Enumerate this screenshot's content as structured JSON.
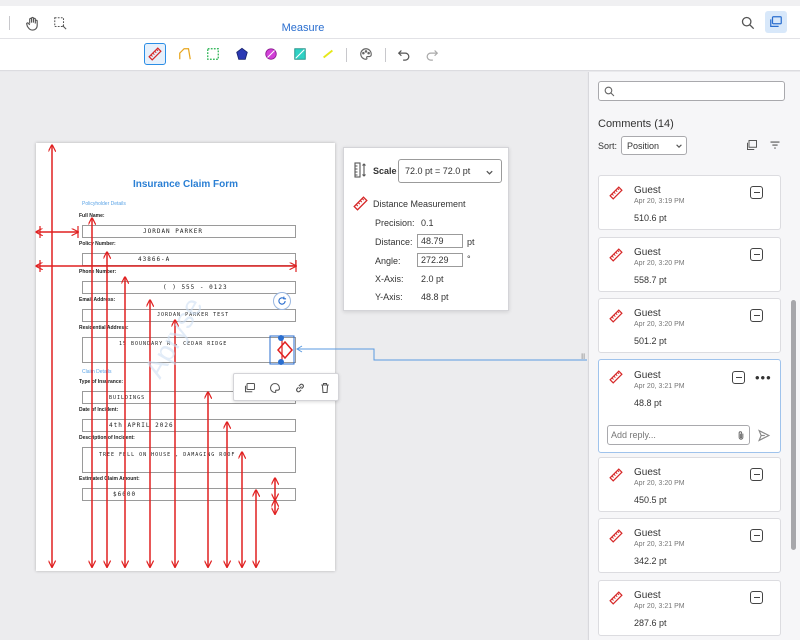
{
  "header": {
    "tab": "Measure"
  },
  "search": {
    "placeholder": ""
  },
  "comments": {
    "title": "Comments (14)",
    "sort_label": "Sort:",
    "sort_value": "Position",
    "items": [
      {
        "author": "Guest",
        "date": "Apr 20, 3:19 PM",
        "value": "510.6 pt"
      },
      {
        "author": "Guest",
        "date": "Apr 20, 3:20 PM",
        "value": "558.7 pt"
      },
      {
        "author": "Guest",
        "date": "Apr 20, 3:20 PM",
        "value": "501.2 pt"
      },
      {
        "author": "Guest",
        "date": "Apr 20, 3:21 PM",
        "value": "48.8 pt"
      },
      {
        "author": "Guest",
        "date": "Apr 20, 3:20 PM",
        "value": "450.5 pt"
      },
      {
        "author": "Guest",
        "date": "Apr 20, 3:21 PM",
        "value": "342.2 pt"
      },
      {
        "author": "Guest",
        "date": "Apr 20, 3:21 PM",
        "value": "287.6 pt"
      }
    ],
    "reply_placeholder": "Add reply..."
  },
  "popup": {
    "scale_label": "Scale",
    "scale_value": "72.0 pt = 72.0 pt",
    "title": "Distance Measurement",
    "precision_label": "Precision:",
    "precision_value": "0.1",
    "distance_label": "Distance:",
    "distance_value": "48.79",
    "distance_unit": "pt",
    "angle_label": "Angle:",
    "angle_value": "272.29",
    "angle_unit": "°",
    "xaxis_label": "X-Axis:",
    "xaxis_value": "2.0 pt",
    "yaxis_label": "Y-Axis:",
    "yaxis_value": "48.8 pt"
  },
  "form": {
    "title": "Insurance Claim Form",
    "section1": "Policyholder Details",
    "section2": "Claim Details",
    "fields": [
      {
        "label": "Full Name:",
        "value": "JORDAN PARKER"
      },
      {
        "label": "Policy Number:",
        "value": "43866-A"
      },
      {
        "label": "Phone Number:",
        "value": "( ) 555 - 0123"
      },
      {
        "label": "Email Address:",
        "value": "JORDAN PARKER TEST"
      },
      {
        "label": "Residential Address:",
        "value": "15 BOUNDARY R , CEDAR RIDGE"
      },
      {
        "label": "Type of Insurance:",
        "value": "BUILDINGS"
      },
      {
        "label": "Date of Incident:",
        "value": "4th APRIL 2026"
      },
      {
        "label": "Description of Incident:",
        "value": "TREE FELL ON HOUSE , DAMAGING ROOF"
      },
      {
        "label": "Estimated Claim Amount:",
        "value": "$6000"
      }
    ]
  },
  "colors": {
    "accent": "#2a8de5",
    "measure": "#e02020"
  }
}
